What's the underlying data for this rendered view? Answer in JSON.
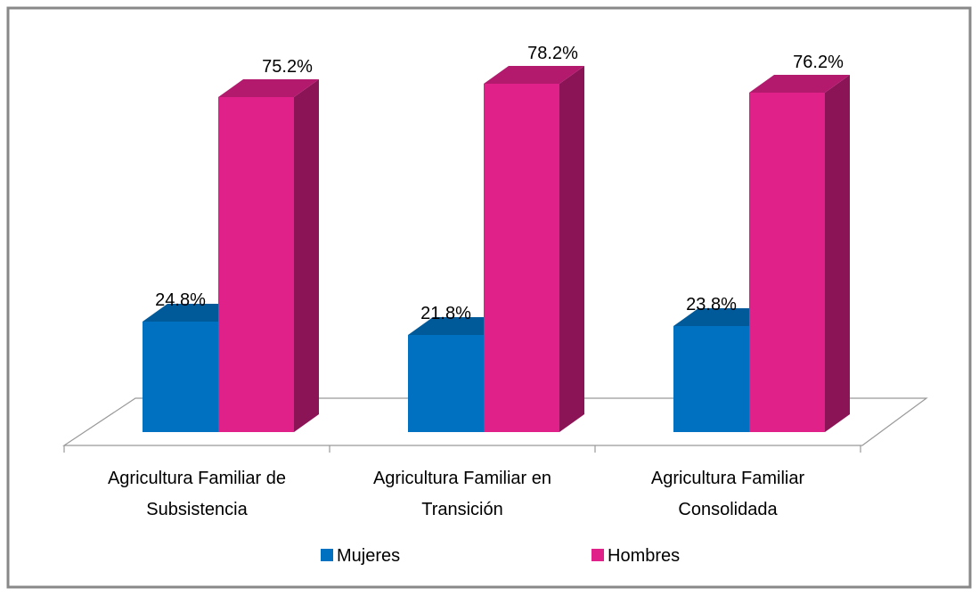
{
  "chart_data": {
    "type": "bar3d",
    "categories": [
      "Agricultura Familiar de Subsistencia",
      "Agricultura Familiar en Transición",
      "Agricultura Familiar Consolidada"
    ],
    "series": [
      {
        "name": "Mujeres",
        "color": "#0070c0",
        "values": [
          24.8,
          21.8,
          23.8
        ],
        "value_labels": [
          "24.8%",
          "21.8%",
          "23.8%"
        ]
      },
      {
        "name": "Hombres",
        "color": "#e0218a",
        "values": [
          75.2,
          78.2,
          76.2
        ],
        "value_labels": [
          "75.2%",
          "78.2%",
          "76.2%"
        ]
      }
    ],
    "legend": "bottom"
  }
}
